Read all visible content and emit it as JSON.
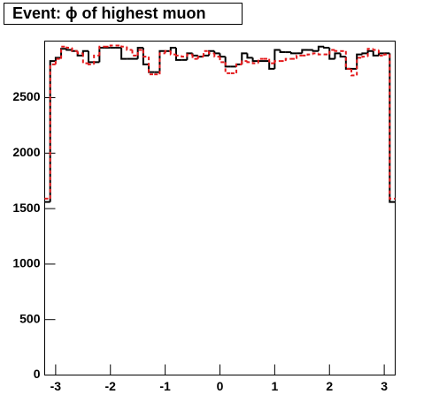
{
  "chart_data": {
    "type": "histogram",
    "title": "Event: ϕ of highest muon",
    "bins": [
      -3.2,
      -3.1,
      -3.0,
      -2.9,
      -2.8,
      -2.7,
      -2.6,
      -2.5,
      -2.4,
      -2.3,
      -2.2,
      -2.1,
      -2.0,
      -1.9,
      -1.8,
      -1.7,
      -1.6,
      -1.5,
      -1.4,
      -1.3,
      -1.2,
      -1.1,
      -1.0,
      -0.9,
      -0.8,
      -0.7,
      -0.6,
      -0.5,
      -0.4,
      -0.3,
      -0.2,
      -0.1,
      0.0,
      0.1,
      0.2,
      0.3,
      0.4,
      0.5,
      0.6,
      0.7,
      0.8,
      0.9,
      1.0,
      1.1,
      1.2,
      1.3,
      1.4,
      1.5,
      1.6,
      1.7,
      1.8,
      1.9,
      2.0,
      2.1,
      2.2,
      2.3,
      2.4,
      2.5,
      2.6,
      2.7,
      2.8,
      2.9,
      3.0,
      3.1,
      3.2
    ],
    "series": [
      {
        "color": "#000000",
        "values": [
          1560,
          2830,
          2860,
          2940,
          2930,
          2920,
          2880,
          2920,
          2820,
          2820,
          2950,
          2950,
          2950,
          2950,
          2850,
          2850,
          2850,
          2950,
          2800,
          2730,
          2730,
          2920,
          2920,
          2950,
          2840,
          2840,
          2900,
          2880,
          2870,
          2880,
          2920,
          2900,
          2870,
          2780,
          2780,
          2800,
          2900,
          2860,
          2830,
          2830,
          2830,
          2760,
          2930,
          2910,
          2910,
          2900,
          2900,
          2930,
          2930,
          2920,
          2960,
          2950,
          2850,
          2900,
          2870,
          2760,
          2760,
          2890,
          2900,
          2920,
          2880,
          2900,
          2900,
          1560
        ]
      },
      {
        "color": "#e41a1c",
        "values": [
          1590,
          2800,
          2850,
          2960,
          2950,
          2920,
          2900,
          2810,
          2800,
          2880,
          2960,
          2960,
          2970,
          2970,
          2960,
          2930,
          2880,
          2930,
          2870,
          2710,
          2710,
          2900,
          2920,
          2890,
          2880,
          2870,
          2890,
          2850,
          2870,
          2920,
          2900,
          2870,
          2820,
          2720,
          2720,
          2800,
          2830,
          2820,
          2810,
          2850,
          2850,
          2810,
          2830,
          2830,
          2850,
          2850,
          2880,
          2880,
          2890,
          2900,
          2890,
          2890,
          2930,
          2920,
          2920,
          2760,
          2700,
          2860,
          2870,
          2940,
          2930,
          2880,
          2890,
          1590
        ]
      }
    ],
    "xlim": [
      -3.2,
      3.2
    ],
    "ylim": [
      0,
      3010
    ],
    "xticks": [
      -3,
      -2,
      -1,
      0,
      1,
      2,
      3
    ],
    "yticks": [
      0,
      500,
      1000,
      1500,
      2000,
      2500
    ]
  }
}
